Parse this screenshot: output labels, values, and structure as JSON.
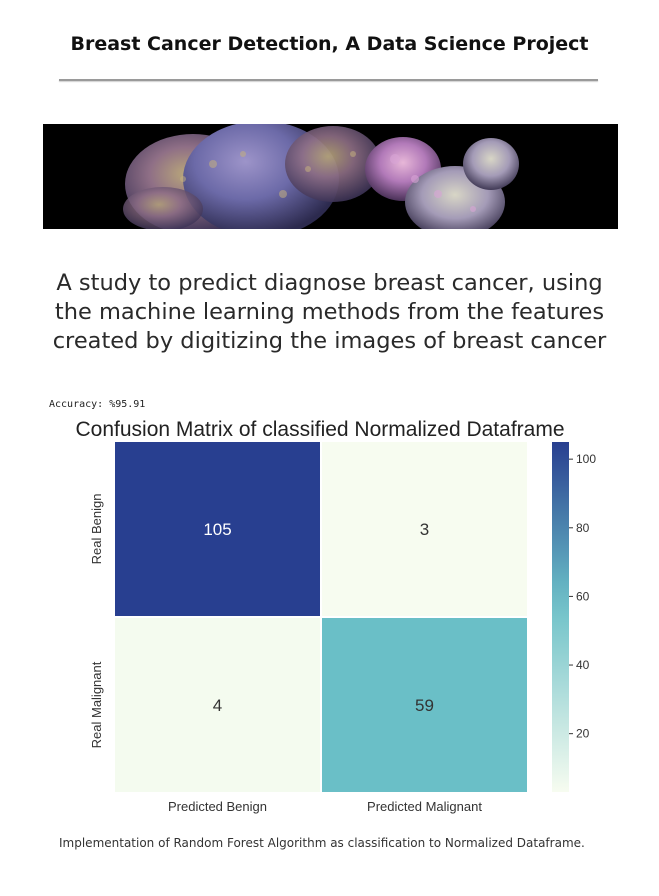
{
  "page": {
    "title": "Breast Cancer Detection, A Data Science Project",
    "subtitle_lines": [
      "A study to predict diagnose breast cancer, using",
      "the machine learning methods from the features",
      "created by digitizing the images of breast cancer"
    ],
    "accuracy": "Accuracy: %95.91",
    "caption": "Implementation of Random Forest Algorithm as classification to Normalized Dataframe."
  },
  "banner": {
    "icon": "cancer-cell-microscopy-image"
  },
  "chart_data": {
    "type": "heatmap",
    "title": "Confusion Matrix of classified Normalized Dataframe",
    "rows": [
      "Real Benign",
      "Real Malignant"
    ],
    "columns": [
      "Predicted Benign",
      "Predicted Malignant"
    ],
    "values": [
      [
        105,
        3
      ],
      [
        4,
        59
      ]
    ],
    "colorbar": {
      "ticks": [
        100,
        80,
        60,
        40,
        20
      ],
      "range": [
        3,
        105
      ]
    },
    "colormap": "YlGnBu",
    "colors": {
      "low": "#f7fcf0",
      "mid": "#6abfc7",
      "high": "#283f90"
    }
  }
}
